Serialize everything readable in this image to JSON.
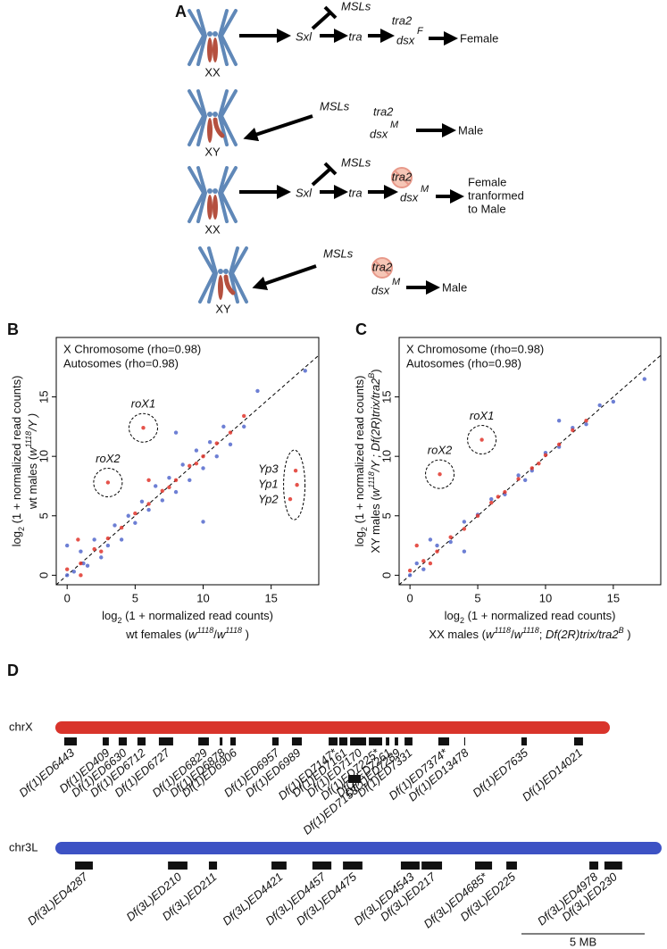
{
  "panel_labels": [
    "A",
    "B",
    "C",
    "D"
  ],
  "diagram": {
    "rows": [
      {
        "karyotype": "XX",
        "regulator": "MSLs",
        "genes": [
          "Sxl",
          "tra",
          "tra2",
          "dsx"
        ],
        "dsx_form": "F",
        "outcome": [
          "Female"
        ]
      },
      {
        "karyotype": "XY",
        "regulator": "MSLs",
        "genes": [
          "tra2",
          "dsx"
        ],
        "dsx_form": "M",
        "outcome": [
          "Male"
        ]
      },
      {
        "karyotype": "XX",
        "regulator": "MSLs",
        "genes": [
          "Sxl",
          "tra",
          "tra2",
          "dsx"
        ],
        "dsx_form": "M",
        "outcome": [
          "Female",
          "tranformed",
          "to Male"
        ]
      },
      {
        "karyotype": "XY",
        "regulator": "MSLs",
        "genes": [
          "tra2",
          "dsx"
        ],
        "dsx_form": "M",
        "outcome": [
          "Male"
        ]
      }
    ]
  },
  "chart_data": [
    {
      "type": "scatter",
      "xlim": [
        -0.8,
        18.5
      ],
      "ylim": [
        -0.8,
        20
      ],
      "xticks": [
        0,
        5,
        10,
        15
      ],
      "yticks": [
        0,
        5,
        10,
        15
      ],
      "diagonal": true,
      "xlabel": [
        [
          "log",
          "2",
          " (1 + normalized read counts)"
        ],
        [
          "wt females (",
          "w",
          "1118",
          "/",
          "w",
          "1118",
          " )"
        ]
      ],
      "ylabel": [
        [
          "log",
          "2",
          " (1 + normalized read counts)"
        ],
        [
          "wt males (",
          "w",
          "1118",
          "/Y )"
        ]
      ],
      "series": [
        {
          "name": "X Chromosome (rho=0.98)",
          "color": "#e0352b",
          "x": [
            1,
            2,
            3,
            4,
            5,
            6,
            7,
            8,
            9,
            10,
            11,
            12,
            13,
            0.8,
            6,
            5.6,
            3,
            16.8,
            16.9,
            16.4,
            0,
            1,
            2.5,
            7.5,
            9.5
          ],
          "values": [
            1,
            2.2,
            3.1,
            4,
            5.2,
            6,
            7.1,
            8,
            9.2,
            10,
            11.1,
            12,
            13.4,
            3,
            8,
            12.4,
            7.8,
            8.8,
            7.6,
            6.4,
            0.5,
            0,
            2,
            7.4,
            9.4
          ]
        },
        {
          "name": "Autosomes (rho=0.98)",
          "color": "#5468cc",
          "x": [
            0.5,
            1,
            1.5,
            2,
            2.5,
            3,
            3.5,
            4,
            4.5,
            5,
            5.5,
            6,
            6.5,
            7,
            7.5,
            8,
            8.5,
            9,
            9.5,
            10,
            10.5,
            11,
            11.5,
            12,
            13,
            14,
            17.5,
            0,
            10,
            8,
            0,
            1.2
          ],
          "values": [
            0.3,
            2,
            0.8,
            3,
            1.5,
            2.5,
            4.2,
            3,
            5,
            4.4,
            6.2,
            5.5,
            7.5,
            6.3,
            8.2,
            7,
            9.3,
            8,
            10.5,
            9,
            11.2,
            10,
            12.5,
            11,
            12.5,
            15.5,
            17.2,
            2.5,
            4.5,
            12,
            0,
            1
          ]
        }
      ],
      "annotations": [
        {
          "texts": [
            "roX1"
          ],
          "x": 5.6,
          "y": 12.4
        },
        {
          "texts": [
            "roX2"
          ],
          "x": 3,
          "y": 7.8
        },
        {
          "texts": [
            "Yp3",
            "Yp1",
            "Yp2"
          ],
          "x": 16.7,
          "y": 7.6
        }
      ]
    },
    {
      "type": "scatter",
      "xlim": [
        -0.8,
        18.5
      ],
      "ylim": [
        -0.8,
        20
      ],
      "xticks": [
        0,
        5,
        10,
        15
      ],
      "yticks": [
        0,
        5,
        10,
        15
      ],
      "diagonal": true,
      "xlabel": [
        [
          "log",
          "2",
          " (1 + normalized read counts)"
        ],
        [
          "XX males (",
          "w",
          "1118",
          "/",
          "w",
          "1118",
          "; ",
          "Df(2R)trix/tra2",
          "B",
          " )"
        ]
      ],
      "ylabel": [
        [
          "log",
          "2",
          " (1 + normalized read counts)"
        ],
        [
          "XY males (",
          "w",
          "1118",
          "/Y ; ",
          "Df(2R)trix/tra2",
          "B",
          ")"
        ]
      ],
      "series": [
        {
          "name": "X Chromosome (rho=0.98)",
          "color": "#e0352b",
          "x": [
            1,
            2,
            3,
            4,
            5,
            6,
            7,
            8,
            9,
            10,
            11,
            12,
            13,
            5.3,
            2.2,
            0.5,
            0,
            1.5,
            6.5,
            9.5
          ],
          "values": [
            1.2,
            2,
            3.2,
            3.9,
            5,
            6.1,
            7,
            8.1,
            9,
            10.1,
            11,
            12.2,
            13,
            11.4,
            8.5,
            2.5,
            0.4,
            1,
            6.6,
            9.4
          ]
        },
        {
          "name": "Autosomes (rho=0.98)",
          "color": "#5468cc",
          "x": [
            0.5,
            1,
            2,
            3,
            4,
            5,
            6,
            7,
            8,
            9,
            10,
            11,
            12,
            13,
            14,
            15,
            1.5,
            4,
            11,
            17.3,
            0,
            8.5
          ],
          "values": [
            1,
            0.5,
            2.5,
            2.8,
            4.5,
            5.1,
            6.4,
            6.8,
            8.4,
            8.8,
            10.3,
            10.8,
            12.4,
            12.7,
            14.3,
            14.6,
            3,
            2,
            13,
            16.5,
            0,
            8
          ]
        }
      ],
      "annotations": [
        {
          "texts": [
            "roX1"
          ],
          "x": 5.3,
          "y": 11.4
        },
        {
          "texts": [
            "roX2"
          ],
          "x": 2.2,
          "y": 8.5
        }
      ]
    }
  ],
  "genome_map": {
    "scale_bar": {
      "value": 5,
      "label": "5 MB"
    },
    "chromosomes": [
      {
        "name": "chrX",
        "length": 22.5,
        "color": "#d9342b",
        "deficiencies": [
          {
            "name": "Df(1)ED6443",
            "start": 0.36,
            "end": 0.87
          },
          {
            "name": "Df(1)ED409",
            "start": 1.92,
            "end": 2.17
          },
          {
            "name": "Df(1)ED6630",
            "start": 2.57,
            "end": 2.9
          },
          {
            "name": "Df(1)ED6712",
            "start": 3.33,
            "end": 3.66
          },
          {
            "name": "Df(1)ED6727",
            "start": 4.2,
            "end": 4.78
          },
          {
            "name": "Df(1)ED6829",
            "start": 5.8,
            "end": 6.23
          },
          {
            "name": "Df(1)ED6878",
            "start": 6.67,
            "end": 6.78
          },
          {
            "name": "Df(1)ED6906",
            "start": 7.1,
            "end": 7.32
          },
          {
            "name": "Df(1)ED6957",
            "start": 8.8,
            "end": 9.06
          },
          {
            "name": "Df(1)ED6989",
            "start": 9.6,
            "end": 10.0
          },
          {
            "name": "Df(1)ED7147*",
            "start": 11.09,
            "end": 11.45
          },
          {
            "name": "Df(1)ED7161",
            "start": 11.52,
            "end": 11.85
          },
          {
            "name": "Df(1)ED7170",
            "start": 11.96,
            "end": 12.61
          },
          {
            "name": "Df(1)ED7225*",
            "start": 12.72,
            "end": 13.26
          },
          {
            "name": "Df(1)ED7261",
            "start": 13.41,
            "end": 13.55
          },
          {
            "name": "Df(1)ED7289",
            "start": 13.77,
            "end": 13.91
          },
          {
            "name": "Df(1)ED7331",
            "start": 14.17,
            "end": 14.49
          },
          {
            "name": "Df(1)ED7374*",
            "start": 15.54,
            "end": 15.98
          },
          {
            "name": "Df(1)ED13478",
            "start": 16.59,
            "end": 16.63
          },
          {
            "name": "Df(1)ED7635",
            "start": 18.91,
            "end": 19.13
          },
          {
            "name": "Df(1)ED14021",
            "start": 21.05,
            "end": 21.41
          },
          {
            "name": "Df(1)ED7153",
            "start": 11.88,
            "end": 12.39
          }
        ]
      },
      {
        "name": "chr3L",
        "length": 24.6,
        "color": "#3d52c4",
        "deficiencies": [
          {
            "name": "Df(3L)ED4287",
            "start": 0.8,
            "end": 1.52
          },
          {
            "name": "Df(3L)ED210",
            "start": 4.57,
            "end": 5.36
          },
          {
            "name": "Df(3L)ED211",
            "start": 6.23,
            "end": 6.56
          },
          {
            "name": "Df(3L)ED4421",
            "start": 8.77,
            "end": 9.38
          },
          {
            "name": "Df(3L)ED4457",
            "start": 10.43,
            "end": 11.2
          },
          {
            "name": "Df(3L)ED4475",
            "start": 11.67,
            "end": 12.46
          },
          {
            "name": "Df(3L)ED4543",
            "start": 14.02,
            "end": 14.78
          },
          {
            "name": "Df(3L)ED217",
            "start": 14.86,
            "end": 15.69
          },
          {
            "name": "Df(3L)ED4685*",
            "start": 17.03,
            "end": 17.72
          },
          {
            "name": "Df(3L)ED225",
            "start": 18.3,
            "end": 18.73
          },
          {
            "name": "Df(3L)ED4978",
            "start": 21.67,
            "end": 22.03
          },
          {
            "name": "Df(3L)ED230",
            "start": 22.28,
            "end": 23.0
          }
        ]
      }
    ]
  }
}
